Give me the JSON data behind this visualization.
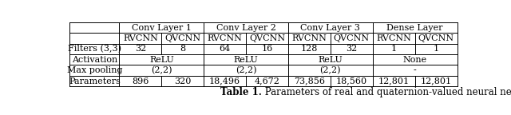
{
  "title_bold": "Table 1.",
  "title_rest": " Parameters of real and quaternion-valued neural networks",
  "col_groups": [
    "Conv Layer 1",
    "Conv Layer 2",
    "Conv Layer 3",
    "Dense Layer"
  ],
  "sub_headers": [
    "RVCNN",
    "QVCNN",
    "RVCNN",
    "QVCNN",
    "RVCNN",
    "QVCNN",
    "RVCNN",
    "QVCNN"
  ],
  "row_headers": [
    "Filters (3,3)",
    "Activation",
    "Max pooling",
    "Parameters"
  ],
  "rows": [
    [
      "32",
      "8",
      "64",
      "16",
      "128",
      "32",
      "1",
      "1"
    ],
    [
      "ReLU",
      "ReLU",
      "ReLU",
      "None"
    ],
    [
      "(2,2)",
      "(2,2)",
      "(2,2)",
      "-"
    ],
    [
      "896",
      "320",
      "18,496",
      "4,672",
      "73,856",
      "18,560",
      "12,801",
      "12,801"
    ]
  ],
  "background_color": "#ffffff",
  "text_color": "#000000",
  "font_size": 8.0,
  "caption_font_size": 8.5
}
